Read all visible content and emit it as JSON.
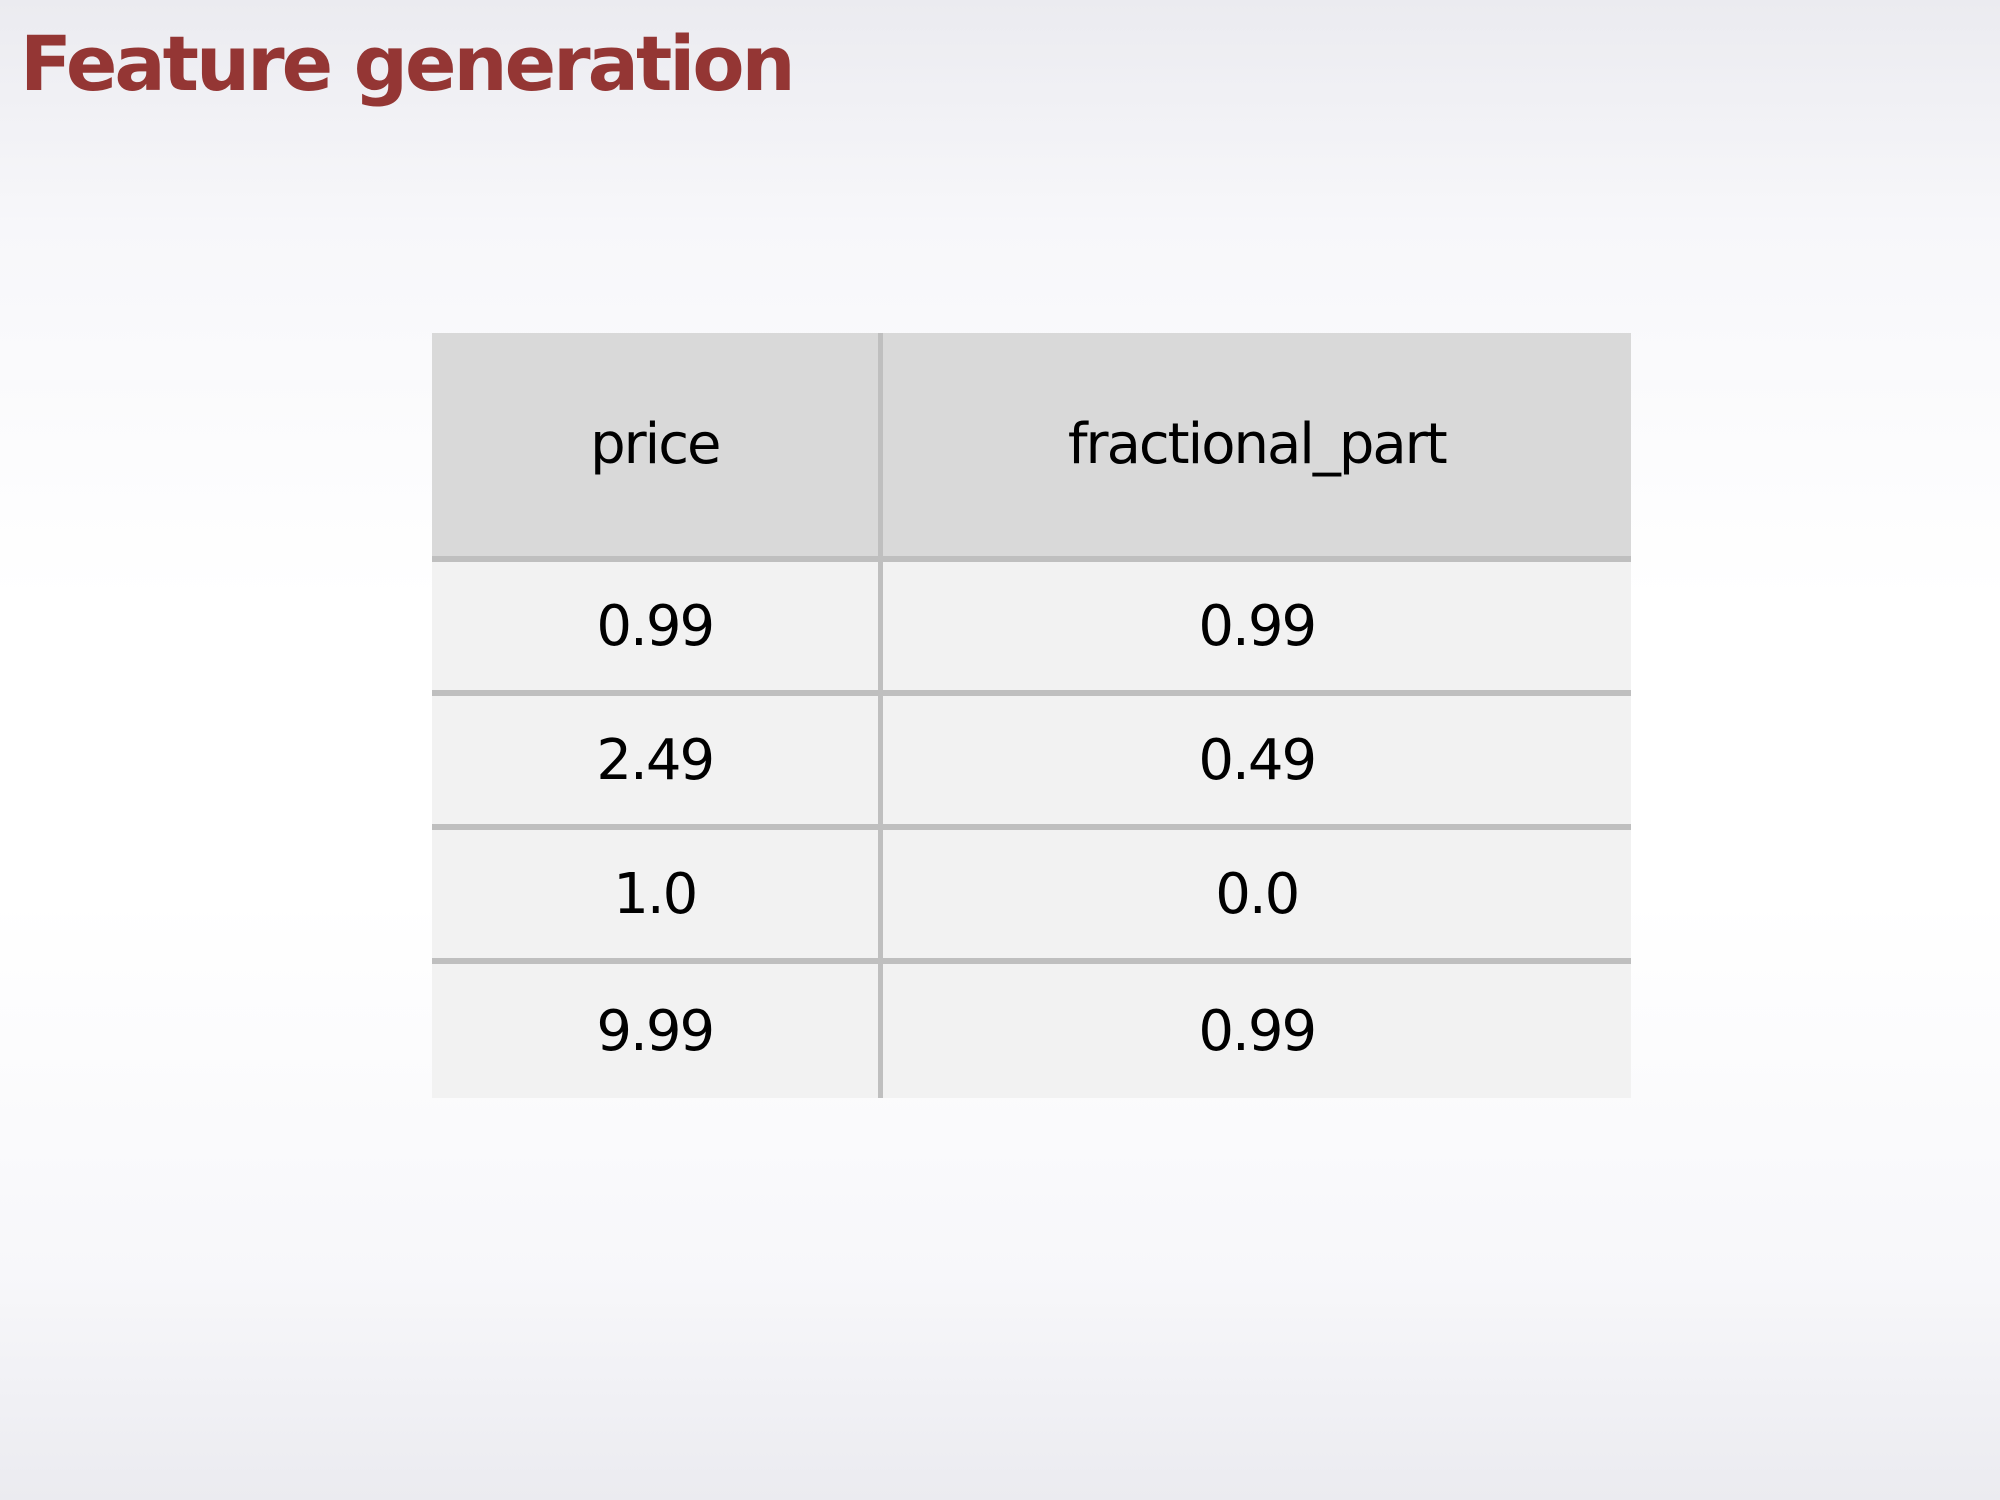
{
  "title": "Feature generation",
  "colors": {
    "title": "#943634",
    "header_bg": "#d9d9d9",
    "cell_bg": "#f2f2f2",
    "grid_line": "#bfbfbf"
  },
  "table": {
    "headers": [
      "price",
      "fractional_part"
    ],
    "rows": [
      [
        "0.99",
        "0.99"
      ],
      [
        "2.49",
        "0.49"
      ],
      [
        "1.0",
        "0.0"
      ],
      [
        "9.99",
        "0.99"
      ]
    ]
  }
}
